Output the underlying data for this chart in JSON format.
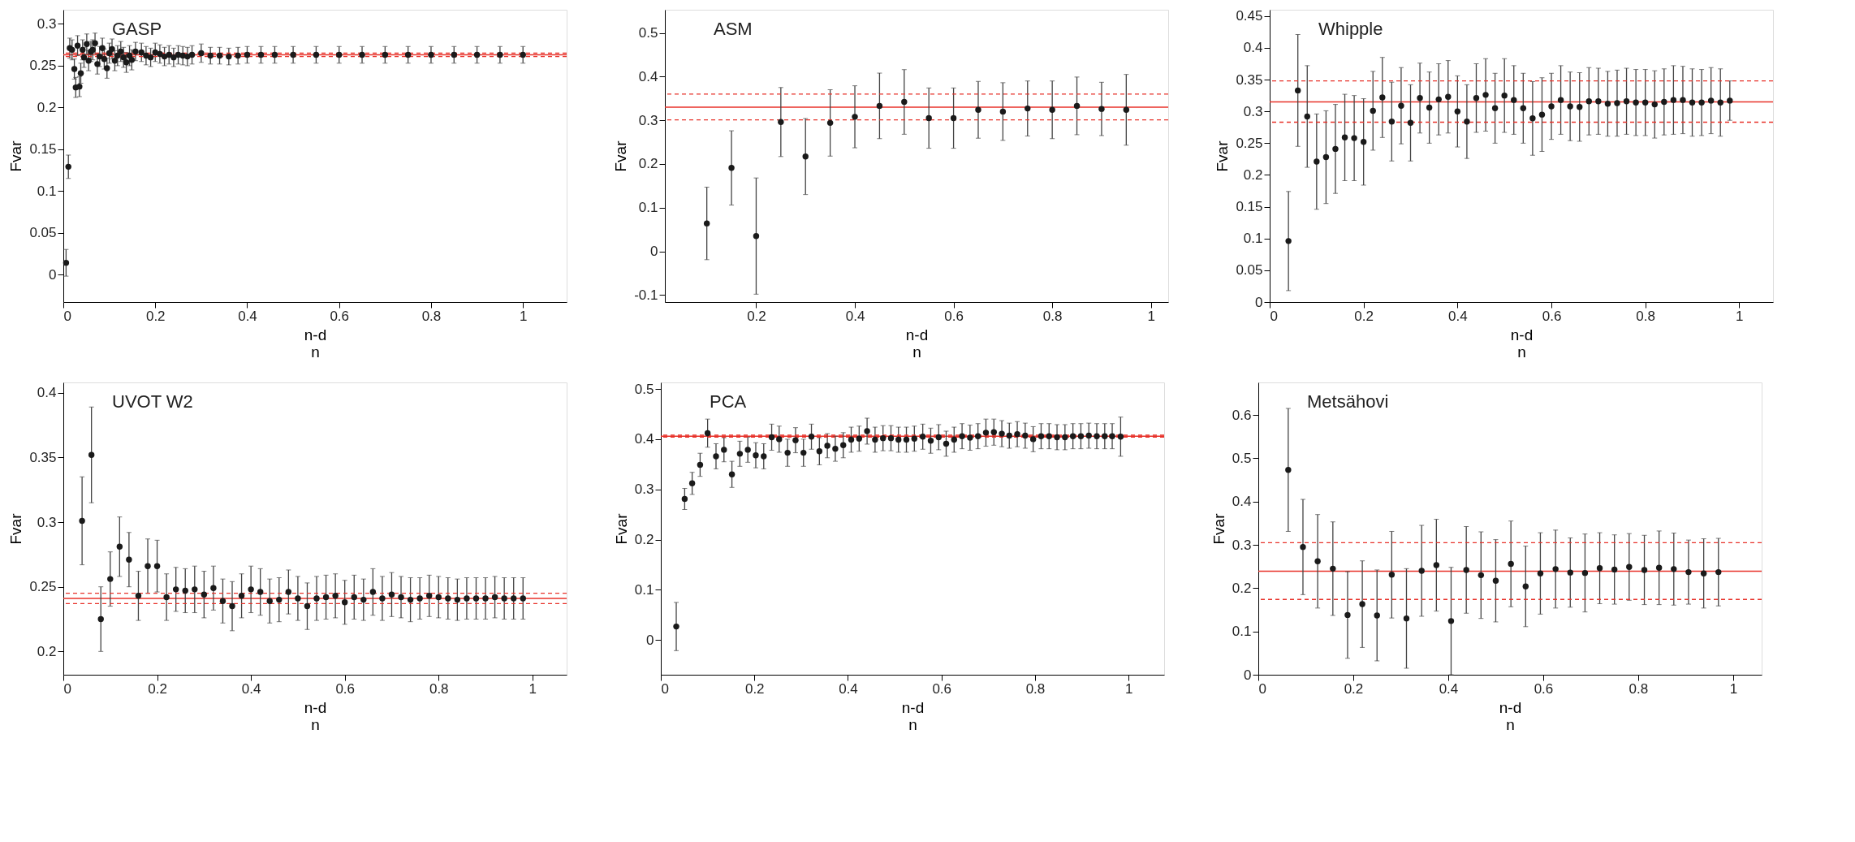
{
  "chart_data": [
    {
      "type": "scatter",
      "title": "GASP",
      "xlabel": "n-d\nn",
      "ylabel": "Fvar",
      "xlim": [
        0,
        1.095
      ],
      "xticks": [
        0,
        0.2,
        0.4,
        0.6,
        0.8,
        1
      ],
      "ylim": [
        -0.033,
        0.317
      ],
      "yticks": [
        0,
        0.05,
        0.1,
        0.15,
        0.2,
        0.25,
        0.3
      ],
      "grid": false,
      "legend": false,
      "marker": "circle",
      "x": [
        0.006,
        0.011,
        0.014,
        0.019,
        0.024,
        0.027,
        0.031,
        0.035,
        0.038,
        0.042,
        0.045,
        0.051,
        0.055,
        0.06,
        0.064,
        0.069,
        0.074,
        0.079,
        0.085,
        0.089,
        0.095,
        0.1,
        0.106,
        0.112,
        0.118,
        0.125,
        0.131,
        0.137,
        0.144,
        0.149,
        0.157,
        0.17,
        0.18,
        0.19,
        0.2,
        0.21,
        0.22,
        0.23,
        0.24,
        0.25,
        0.26,
        0.27,
        0.28,
        0.3,
        0.32,
        0.34,
        0.36,
        0.38,
        0.4,
        0.43,
        0.46,
        0.5,
        0.55,
        0.6,
        0.65,
        0.7,
        0.75,
        0.8,
        0.85,
        0.9,
        0.95,
        1.0
      ],
      "series": [
        {
          "color": "#1a1a1a",
          "values": [
            0.014,
            0.129,
            0.271,
            0.269,
            0.246,
            0.224,
            0.274,
            0.225,
            0.241,
            0.269,
            0.26,
            0.276,
            0.256,
            0.267,
            0.269,
            0.277,
            0.252,
            0.261,
            0.271,
            0.258,
            0.247,
            0.265,
            0.27,
            0.256,
            0.262,
            0.267,
            0.26,
            0.254,
            0.262,
            0.257,
            0.267,
            0.266,
            0.262,
            0.26,
            0.266,
            0.264,
            0.261,
            0.263,
            0.26,
            0.263,
            0.262,
            0.261,
            0.263,
            0.265,
            0.262,
            0.262,
            0.261,
            0.262,
            0.263,
            0.263,
            0.263,
            0.263,
            0.263,
            0.263,
            0.263,
            0.263,
            0.263,
            0.263,
            0.263,
            0.263,
            0.263,
            0.263
          ],
          "errors": [
            0.016,
            0.014,
            0.012,
            0.012,
            0.012,
            0.012,
            0.012,
            0.012,
            0.012,
            0.012,
            0.012,
            0.012,
            0.012,
            0.012,
            0.012,
            0.012,
            0.012,
            0.012,
            0.012,
            0.012,
            0.012,
            0.012,
            0.012,
            0.012,
            0.012,
            0.012,
            0.012,
            0.012,
            0.012,
            0.012,
            0.011,
            0.011,
            0.011,
            0.011,
            0.011,
            0.011,
            0.011,
            0.011,
            0.011,
            0.011,
            0.011,
            0.011,
            0.011,
            0.011,
            0.01,
            0.01,
            0.01,
            0.01,
            0.01,
            0.01,
            0.01,
            0.01,
            0.01,
            0.01,
            0.01,
            0.01,
            0.01,
            0.01,
            0.01,
            0.01,
            0.01,
            0.01
          ]
        }
      ],
      "ref_lines": [
        {
          "axis": "y",
          "value": 0.263,
          "color": "#e8322a",
          "line_style": "solid"
        },
        {
          "axis": "y",
          "value": 0.261,
          "color": "#e8322a",
          "line_style": "dashed"
        },
        {
          "axis": "y",
          "value": 0.265,
          "color": "#e8322a",
          "line_style": "dashed"
        }
      ]
    },
    {
      "type": "scatter",
      "title": "ASM",
      "xlabel": "n-d\nn",
      "ylabel": "Fvar",
      "xlim": [
        0.015,
        1.035
      ],
      "xticks": [
        0.2,
        0.4,
        0.6,
        0.8,
        1
      ],
      "ylim": [
        -0.116,
        0.553
      ],
      "yticks": [
        -0.1,
        0,
        0.1,
        0.2,
        0.3,
        0.4,
        0.5
      ],
      "grid": false,
      "legend": false,
      "marker": "circle",
      "x": [
        0.1,
        0.15,
        0.2,
        0.25,
        0.3,
        0.35,
        0.4,
        0.45,
        0.5,
        0.55,
        0.6,
        0.65,
        0.7,
        0.75,
        0.8,
        0.85,
        0.9,
        0.95
      ],
      "series": [
        {
          "color": "#1a1a1a",
          "values": [
            0.064,
            0.191,
            0.035,
            0.296,
            0.217,
            0.294,
            0.308,
            0.333,
            0.342,
            0.305,
            0.305,
            0.324,
            0.32,
            0.327,
            0.324,
            0.333,
            0.326,
            0.324
          ],
          "errors": [
            0.083,
            0.085,
            0.133,
            0.079,
            0.087,
            0.076,
            0.071,
            0.075,
            0.074,
            0.069,
            0.069,
            0.065,
            0.066,
            0.063,
            0.066,
            0.066,
            0.061,
            0.081
          ]
        }
      ],
      "ref_lines": [
        {
          "axis": "y",
          "value": 0.33,
          "color": "#e8322a",
          "line_style": "solid"
        },
        {
          "axis": "y",
          "value": 0.36,
          "color": "#e8322a",
          "line_style": "dashed"
        },
        {
          "axis": "y",
          "value": 0.301,
          "color": "#e8322a",
          "line_style": "dashed"
        }
      ]
    },
    {
      "type": "scatter",
      "title": "Whipple",
      "xlabel": "n-d\nn",
      "ylabel": "Fvar",
      "xlim": [
        0,
        1.072
      ],
      "xticks": [
        0,
        0.2,
        0.4,
        0.6,
        0.8,
        1
      ],
      "ylim": [
        0,
        0.46
      ],
      "yticks": [
        0,
        0.05,
        0.1,
        0.15,
        0.2,
        0.25,
        0.3,
        0.35,
        0.4,
        0.45
      ],
      "grid": false,
      "legend": false,
      "marker": "circle",
      "x": [
        0.04,
        0.06,
        0.08,
        0.1,
        0.12,
        0.14,
        0.16,
        0.18,
        0.2,
        0.22,
        0.24,
        0.26,
        0.28,
        0.3,
        0.32,
        0.34,
        0.36,
        0.38,
        0.4,
        0.42,
        0.44,
        0.46,
        0.48,
        0.5,
        0.52,
        0.54,
        0.56,
        0.58,
        0.6,
        0.62,
        0.64,
        0.66,
        0.68,
        0.7,
        0.72,
        0.74,
        0.76,
        0.78,
        0.8,
        0.82,
        0.84,
        0.86,
        0.88,
        0.9,
        0.92,
        0.94,
        0.96,
        0.98
      ],
      "series": [
        {
          "color": "#1a1a1a",
          "values": [
            0.096,
            0.333,
            0.292,
            0.221,
            0.228,
            0.241,
            0.259,
            0.258,
            0.252,
            0.301,
            0.322,
            0.284,
            0.309,
            0.282,
            0.321,
            0.306,
            0.319,
            0.323,
            0.3,
            0.284,
            0.321,
            0.326,
            0.305,
            0.325,
            0.318,
            0.305,
            0.289,
            0.295,
            0.308,
            0.318,
            0.308,
            0.307,
            0.316,
            0.316,
            0.312,
            0.313,
            0.316,
            0.314,
            0.314,
            0.311,
            0.315,
            0.318,
            0.318,
            0.314,
            0.314,
            0.317,
            0.314,
            0.317
          ],
          "errors": [
            0.078,
            0.088,
            0.08,
            0.075,
            0.073,
            0.07,
            0.068,
            0.067,
            0.068,
            0.062,
            0.063,
            0.062,
            0.06,
            0.06,
            0.055,
            0.056,
            0.056,
            0.057,
            0.056,
            0.058,
            0.054,
            0.057,
            0.055,
            0.058,
            0.054,
            0.055,
            0.058,
            0.058,
            0.052,
            0.054,
            0.054,
            0.054,
            0.053,
            0.052,
            0.051,
            0.052,
            0.052,
            0.052,
            0.052,
            0.053,
            0.052,
            0.054,
            0.053,
            0.053,
            0.052,
            0.052,
            0.053,
            0.031
          ]
        }
      ],
      "ref_lines": [
        {
          "axis": "y",
          "value": 0.315,
          "color": "#e8322a",
          "line_style": "solid"
        },
        {
          "axis": "y",
          "value": 0.348,
          "color": "#e8322a",
          "line_style": "dashed"
        },
        {
          "axis": "y",
          "value": 0.283,
          "color": "#e8322a",
          "line_style": "dashed"
        }
      ]
    },
    {
      "type": "scatter",
      "title": "UVOT  W2",
      "xlabel": "n-d\nn",
      "ylabel": "Fvar",
      "xlim": [
        0,
        1.073
      ],
      "xticks": [
        0,
        0.2,
        0.4,
        0.6,
        0.8,
        1
      ],
      "ylim": [
        0.182,
        0.408
      ],
      "yticks": [
        0.2,
        0.25,
        0.3,
        0.35,
        0.4
      ],
      "grid": false,
      "legend": false,
      "marker": "circle",
      "x": [
        0.04,
        0.06,
        0.08,
        0.1,
        0.12,
        0.14,
        0.16,
        0.18,
        0.2,
        0.22,
        0.24,
        0.26,
        0.28,
        0.3,
        0.32,
        0.34,
        0.36,
        0.38,
        0.4,
        0.42,
        0.44,
        0.46,
        0.48,
        0.5,
        0.52,
        0.54,
        0.56,
        0.58,
        0.6,
        0.62,
        0.64,
        0.66,
        0.68,
        0.7,
        0.72,
        0.74,
        0.76,
        0.78,
        0.8,
        0.82,
        0.84,
        0.86,
        0.88,
        0.9,
        0.92,
        0.94,
        0.96,
        0.98
      ],
      "series": [
        {
          "color": "#1a1a1a",
          "values": [
            0.301,
            0.352,
            0.225,
            0.256,
            0.281,
            0.271,
            0.243,
            0.266,
            0.266,
            0.242,
            0.248,
            0.247,
            0.248,
            0.244,
            0.249,
            0.239,
            0.235,
            0.243,
            0.248,
            0.246,
            0.239,
            0.24,
            0.246,
            0.241,
            0.235,
            0.241,
            0.242,
            0.243,
            0.238,
            0.242,
            0.24,
            0.246,
            0.241,
            0.244,
            0.242,
            0.24,
            0.241,
            0.243,
            0.242,
            0.241,
            0.24,
            0.241,
            0.241,
            0.241,
            0.242,
            0.241,
            0.241,
            0.241
          ],
          "errors": [
            0.034,
            0.037,
            0.025,
            0.021,
            0.023,
            0.021,
            0.019,
            0.021,
            0.02,
            0.018,
            0.017,
            0.017,
            0.018,
            0.018,
            0.017,
            0.017,
            0.019,
            0.017,
            0.018,
            0.018,
            0.017,
            0.017,
            0.017,
            0.017,
            0.018,
            0.017,
            0.017,
            0.017,
            0.017,
            0.017,
            0.016,
            0.018,
            0.017,
            0.017,
            0.016,
            0.017,
            0.016,
            0.016,
            0.016,
            0.016,
            0.016,
            0.016,
            0.016,
            0.016,
            0.016,
            0.016,
            0.016,
            0.016
          ]
        }
      ],
      "ref_lines": [
        {
          "axis": "y",
          "value": 0.241,
          "color": "#e8322a",
          "line_style": "solid"
        },
        {
          "axis": "y",
          "value": 0.245,
          "color": "#e8322a",
          "line_style": "dashed"
        },
        {
          "axis": "y",
          "value": 0.237,
          "color": "#e8322a",
          "line_style": "dashed"
        }
      ]
    },
    {
      "type": "scatter",
      "title": "PCA",
      "xlabel": "n-d\nn",
      "ylabel": "Fvar",
      "xlim": [
        0,
        1.076
      ],
      "xticks": [
        0,
        0.2,
        0.4,
        0.6,
        0.8,
        1
      ],
      "ylim": [
        -0.069,
        0.513
      ],
      "yticks": [
        0,
        0.1,
        0.2,
        0.3,
        0.4,
        0.5
      ],
      "grid": false,
      "legend": false,
      "marker": "circle",
      "x": [
        0.033,
        0.051,
        0.067,
        0.084,
        0.1,
        0.118,
        0.135,
        0.152,
        0.169,
        0.186,
        0.203,
        0.22,
        0.237,
        0.253,
        0.271,
        0.288,
        0.305,
        0.322,
        0.339,
        0.356,
        0.373,
        0.39,
        0.407,
        0.424,
        0.441,
        0.458,
        0.475,
        0.492,
        0.508,
        0.525,
        0.542,
        0.56,
        0.577,
        0.594,
        0.61,
        0.627,
        0.644,
        0.661,
        0.678,
        0.695,
        0.712,
        0.729,
        0.745,
        0.762,
        0.779,
        0.796,
        0.813,
        0.83,
        0.847,
        0.864,
        0.881,
        0.898,
        0.915,
        0.932,
        0.949,
        0.965,
        0.983
      ],
      "series": [
        {
          "color": "#1a1a1a",
          "values": [
            0.027,
            0.281,
            0.312,
            0.349,
            0.412,
            0.366,
            0.379,
            0.33,
            0.371,
            0.379,
            0.368,
            0.366,
            0.404,
            0.4,
            0.373,
            0.398,
            0.373,
            0.405,
            0.376,
            0.387,
            0.381,
            0.388,
            0.399,
            0.401,
            0.416,
            0.399,
            0.402,
            0.402,
            0.399,
            0.399,
            0.401,
            0.405,
            0.397,
            0.404,
            0.391,
            0.399,
            0.406,
            0.403,
            0.406,
            0.413,
            0.414,
            0.411,
            0.407,
            0.41,
            0.407,
            0.4,
            0.406,
            0.406,
            0.404,
            0.404,
            0.406,
            0.406,
            0.407,
            0.406,
            0.406,
            0.406,
            0.405
          ],
          "errors": [
            0.048,
            0.021,
            0.022,
            0.023,
            0.028,
            0.025,
            0.024,
            0.026,
            0.025,
            0.025,
            0.025,
            0.025,
            0.026,
            0.026,
            0.027,
            0.025,
            0.027,
            0.025,
            0.027,
            0.024,
            0.025,
            0.025,
            0.025,
            0.025,
            0.026,
            0.025,
            0.025,
            0.025,
            0.025,
            0.025,
            0.025,
            0.025,
            0.025,
            0.025,
            0.025,
            0.025,
            0.025,
            0.025,
            0.025,
            0.027,
            0.026,
            0.026,
            0.025,
            0.025,
            0.025,
            0.025,
            0.025,
            0.025,
            0.025,
            0.025,
            0.025,
            0.025,
            0.025,
            0.025,
            0.025,
            0.025,
            0.039
          ]
        }
      ],
      "ref_lines": [
        {
          "axis": "y",
          "value": 0.406,
          "color": "#e8322a",
          "line_style": "solid"
        },
        {
          "axis": "y",
          "value": 0.404,
          "color": "#e8322a",
          "line_style": "dashed"
        },
        {
          "axis": "y",
          "value": 0.408,
          "color": "#e8322a",
          "line_style": "dashed"
        }
      ]
    },
    {
      "type": "scatter",
      "title": "Metsähovi",
      "xlabel": "n-d\nn",
      "ylabel": "Fvar",
      "xlim": [
        0,
        1.06
      ],
      "xticks": [
        0,
        0.2,
        0.4,
        0.6,
        0.8,
        1
      ],
      "ylim": [
        0,
        0.675
      ],
      "yticks": [
        0,
        0.1,
        0.2,
        0.3,
        0.4,
        0.5,
        0.6
      ],
      "grid": false,
      "legend": false,
      "marker": "circle",
      "x": [
        0.063,
        0.094,
        0.125,
        0.157,
        0.188,
        0.219,
        0.25,
        0.281,
        0.312,
        0.344,
        0.375,
        0.406,
        0.438,
        0.469,
        0.5,
        0.532,
        0.563,
        0.594,
        0.626,
        0.657,
        0.688,
        0.719,
        0.75,
        0.781,
        0.813,
        0.844,
        0.875,
        0.906,
        0.938,
        0.969
      ],
      "series": [
        {
          "color": "#1a1a1a",
          "values": [
            0.473,
            0.295,
            0.262,
            0.245,
            0.138,
            0.163,
            0.137,
            0.231,
            0.13,
            0.24,
            0.253,
            0.124,
            0.242,
            0.23,
            0.217,
            0.256,
            0.204,
            0.234,
            0.244,
            0.236,
            0.235,
            0.246,
            0.243,
            0.249,
            0.242,
            0.247,
            0.244,
            0.237,
            0.234,
            0.237
          ],
          "errors": [
            0.142,
            0.11,
            0.108,
            0.108,
            0.1,
            0.1,
            0.105,
            0.1,
            0.115,
            0.105,
            0.106,
            0.124,
            0.1,
            0.1,
            0.095,
            0.099,
            0.093,
            0.094,
            0.09,
            0.08,
            0.09,
            0.082,
            0.08,
            0.077,
            0.08,
            0.085,
            0.083,
            0.074,
            0.08,
            0.078
          ]
        }
      ],
      "ref_lines": [
        {
          "axis": "y",
          "value": 0.239,
          "color": "#e8322a",
          "line_style": "solid"
        },
        {
          "axis": "y",
          "value": 0.305,
          "color": "#e8322a",
          "line_style": "dashed"
        },
        {
          "axis": "y",
          "value": 0.174,
          "color": "#e8322a",
          "line_style": "dashed"
        }
      ]
    }
  ]
}
